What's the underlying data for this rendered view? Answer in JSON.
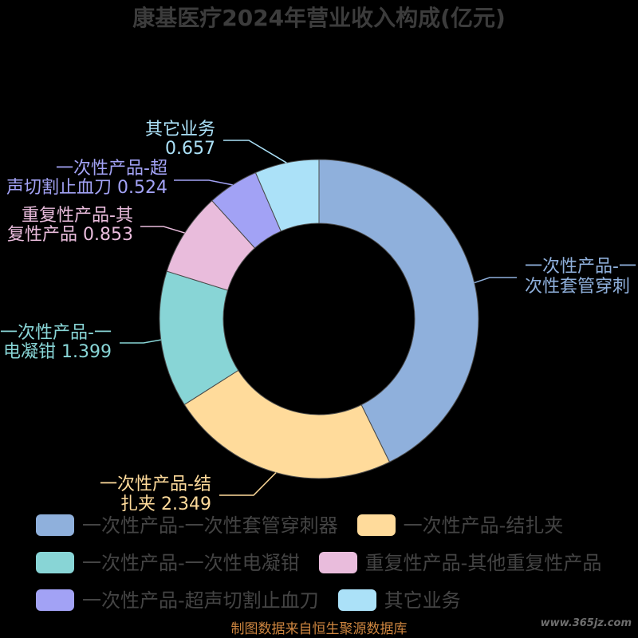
{
  "chart_data": {
    "type": "pie",
    "title": "康基医疗2024年营业收入构成(亿元)",
    "categories": [
      "一次性产品-一次性套管穿刺器",
      "一次性产品-结扎夹",
      "一次性产品-一次性电凝钳",
      "重复性产品-其他重复性产品",
      "一次性产品-超声切割止血刀",
      "其它业务"
    ],
    "values": [
      4.31,
      2.349,
      1.399,
      0.853,
      0.524,
      0.657
    ],
    "colors": [
      "#8FB0DC",
      "#FFDB9B",
      "#88D5D6",
      "#E9BCDC",
      "#A2A2F5",
      "#ABE1F8"
    ],
    "slice_labels": [
      [
        "一次性产品-一",
        "次性套管穿刺"
      ],
      [
        "一次性产品-结",
        "扎夹 2.349"
      ],
      [
        "一次性产品-一",
        "电凝钳 1.399"
      ],
      [
        "重复性产品-其",
        "复性产品 0.853"
      ],
      [
        "一次性产品-超",
        "声切割止血刀 0.524"
      ],
      [
        "其它业务",
        "0.657"
      ]
    ],
    "donut": true,
    "legend_position": "bottom-left"
  },
  "footer": {
    "source": "制图数据来自恒生聚源数据库",
    "watermark": "www.365jz.com"
  },
  "colors": {
    "background": "#000000",
    "title": "#3C3C3C",
    "legend_text": "#444444",
    "source_text": "#CD853F",
    "watermark": "#6E6E6E"
  }
}
